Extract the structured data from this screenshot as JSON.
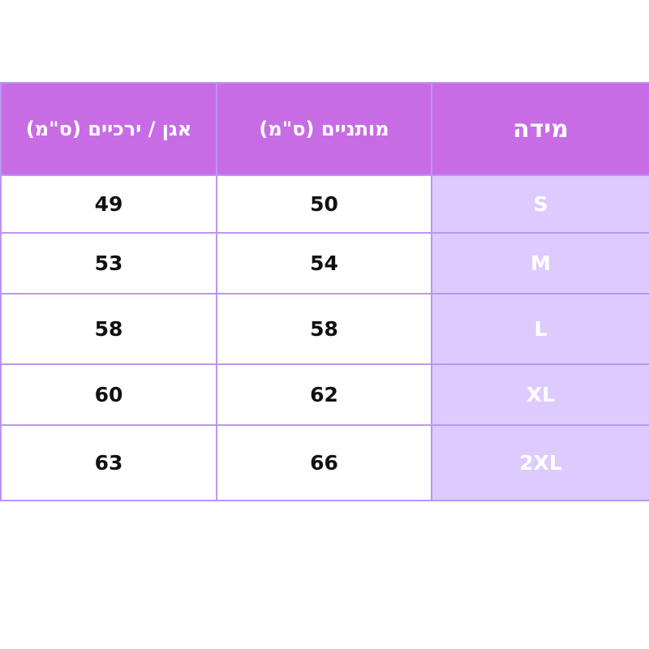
{
  "table": {
    "headers": [
      "מידה",
      "מותניים (ס\"מ)",
      "אגן / ירכיים (ס\"מ)"
    ],
    "rows": [
      {
        "size": "S",
        "waist": "50",
        "hips": "49"
      },
      {
        "size": "M",
        "waist": "54",
        "hips": "53"
      },
      {
        "size": "L",
        "waist": "58",
        "hips": "58"
      },
      {
        "size": "XL",
        "waist": "62",
        "hips": "60"
      },
      {
        "size": "2XL",
        "waist": "66",
        "hips": "63"
      }
    ]
  },
  "colors": {
    "header": "#c86ce6",
    "size_cell": "#dccbfc",
    "border": "#bb96f3"
  }
}
